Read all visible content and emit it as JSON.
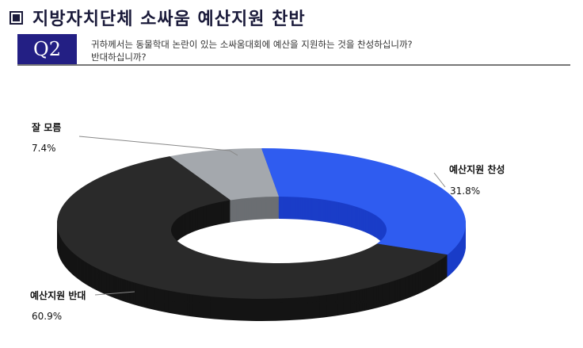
{
  "title": "지방자치단체 소싸움 예산지원 찬반",
  "question": {
    "number": "Q2",
    "line1": "귀하께서는 동물학대 논란이 있는 소싸움대회에 예산을 지원하는 것을 찬성하십니까?",
    "line2": "반대하십니까?"
  },
  "chart_data": {
    "type": "pie",
    "style": "3d-donut",
    "categories": [
      "예산지원 찬성",
      "예산지원 반대",
      "잘 모름"
    ],
    "values": [
      31.8,
      60.9,
      7.4
    ],
    "labels": [
      "31.8%",
      "60.9%",
      "7.4%"
    ],
    "colors": [
      "#2f5cf0",
      "#2a2a2a",
      "#a4a8ad"
    ],
    "side_colors": [
      "#1a3dc8",
      "#141414",
      "#6b6e72"
    ]
  }
}
